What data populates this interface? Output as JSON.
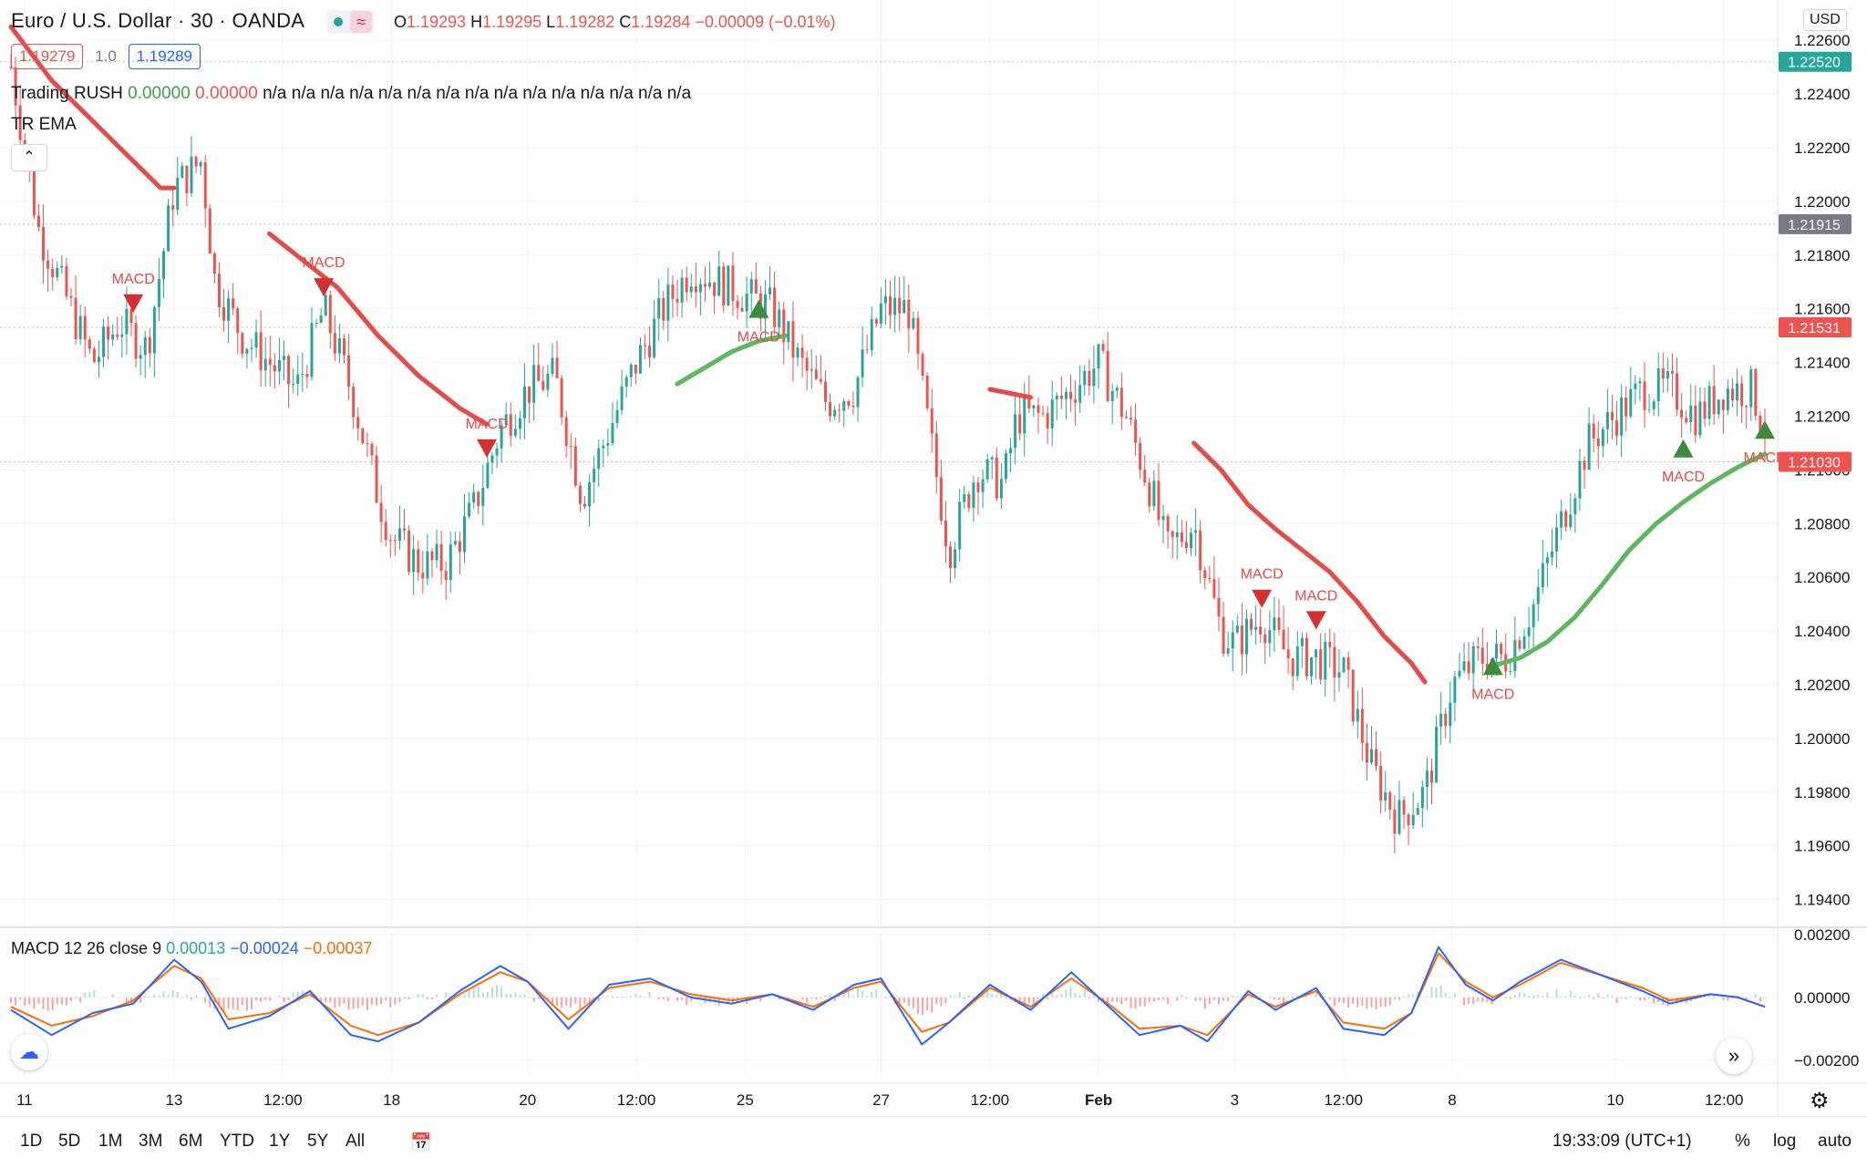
{
  "header": {
    "symbol": "Euro / U.S. Dollar · 30 · OANDA",
    "ohlc": {
      "o_label": "O",
      "o": "1.19293",
      "h_label": "H",
      "h": "1.19295",
      "l_label": "L",
      "l": "1.19282",
      "c_label": "C",
      "c": "1.19284",
      "change": "−0.00009 (−0.01%)"
    },
    "bid": "1.19279",
    "spread": "1.0",
    "ask": "1.19289"
  },
  "indicators": {
    "trading_rush": {
      "label": "Trading RUSH",
      "v1": "0.00000",
      "v2": "0.00000",
      "na": "n/a n/a n/a n/a n/a n/a n/a n/a n/a n/a n/a n/a n/a n/a n/a"
    },
    "tr_ema": {
      "label": "TR EMA"
    },
    "macd": {
      "label": "MACD 12 26 close 9",
      "hist": "0.00013",
      "macd": "−0.00024",
      "signal": "−0.00037"
    }
  },
  "currency": "USD",
  "icons": {
    "collapse": "chevron-up-icon",
    "logo": "tradingview-logo-icon",
    "scroll": "double-chevron-right-icon",
    "settings": "gear-icon",
    "date_range": "calendar-range-icon"
  },
  "colors": {
    "up": "#26a69a",
    "down": "#ef5350",
    "ema_up": "#5cb85c",
    "ema_down": "#e84a47",
    "macd": "#2962ff",
    "signal": "#ff6d00"
  },
  "timeframes": [
    "1D",
    "5D",
    "1M",
    "3M",
    "6M",
    "YTD",
    "1Y",
    "5Y",
    "All"
  ],
  "footer": {
    "clock": "19:33:09 (UTC+1)",
    "percent": "%",
    "log": "log",
    "auto": "auto"
  },
  "chart_data": {
    "type": "candlestick",
    "ylim": [
      1.193,
      1.2275
    ],
    "yticks": [
      "1.22600",
      "1.22400",
      "1.22200",
      "1.22000",
      "1.21800",
      "1.21600",
      "1.21400",
      "1.21200",
      "1.21000",
      "1.20800",
      "1.20600",
      "1.20400",
      "1.20200",
      "1.20000",
      "1.19800",
      "1.19600",
      "1.19400"
    ],
    "ytick_values": [
      1.226,
      1.224,
      1.222,
      1.22,
      1.218,
      1.216,
      1.214,
      1.212,
      1.21,
      1.208,
      1.206,
      1.204,
      1.202,
      1.2,
      1.198,
      1.196,
      1.194
    ],
    "xticks": [
      "11",
      "13",
      "12:00",
      "18",
      "20",
      "12:00",
      "25",
      "27",
      "12:00",
      "Feb",
      "3",
      "12:00",
      "8",
      "10",
      "12:00"
    ],
    "xtick_index": [
      1,
      12,
      20,
      28,
      38,
      46,
      54,
      64,
      72,
      80,
      90,
      98,
      106,
      118,
      126
    ],
    "price_labels": [
      {
        "value": 1.2252,
        "text": "1.22520",
        "color": "#26a69a"
      },
      {
        "value": 1.21915,
        "text": "1.21915",
        "color": "#787b86"
      },
      {
        "value": 1.21531,
        "text": "1.21531",
        "color": "#ef5350"
      },
      {
        "value": 1.2103,
        "text": "1.21030",
        "color": "#ef5350"
      }
    ],
    "price_path": [
      [
        0,
        1.225
      ],
      [
        2,
        1.219
      ],
      [
        4,
        1.2165
      ],
      [
        6,
        1.214
      ],
      [
        8,
        1.2155
      ],
      [
        10,
        1.2145
      ],
      [
        12,
        1.2205
      ],
      [
        14,
        1.2215
      ],
      [
        15,
        1.217
      ],
      [
        17,
        1.215
      ],
      [
        19,
        1.214
      ],
      [
        21,
        1.213
      ],
      [
        23,
        1.216
      ],
      [
        25,
        1.213
      ],
      [
        27,
        1.209
      ],
      [
        28,
        1.2075
      ],
      [
        30,
        1.2065
      ],
      [
        32,
        1.2065
      ],
      [
        34,
        1.2085
      ],
      [
        36,
        1.2115
      ],
      [
        38,
        1.213
      ],
      [
        40,
        1.2135
      ],
      [
        42,
        1.209
      ],
      [
        44,
        1.2115
      ],
      [
        46,
        1.214
      ],
      [
        48,
        1.216
      ],
      [
        50,
        1.2175
      ],
      [
        52,
        1.217
      ],
      [
        54,
        1.2165
      ],
      [
        56,
        1.216
      ],
      [
        58,
        1.214
      ],
      [
        60,
        1.2125
      ],
      [
        62,
        1.213
      ],
      [
        64,
        1.216
      ],
      [
        66,
        1.216
      ],
      [
        67,
        1.213
      ],
      [
        68,
        1.21
      ],
      [
        69,
        1.207
      ],
      [
        71,
        1.21
      ],
      [
        73,
        1.2095
      ],
      [
        74,
        1.212
      ],
      [
        76,
        1.212
      ],
      [
        78,
        1.213
      ],
      [
        80,
        1.214
      ],
      [
        82,
        1.212
      ],
      [
        84,
        1.209
      ],
      [
        85,
        1.207
      ],
      [
        87,
        1.208
      ],
      [
        89,
        1.204
      ],
      [
        90,
        1.2035
      ],
      [
        92,
        1.2045
      ],
      [
        94,
        1.203
      ],
      [
        96,
        1.203
      ],
      [
        98,
        1.2025
      ],
      [
        100,
        1.199
      ],
      [
        102,
        1.197
      ],
      [
        104,
        1.198
      ],
      [
        106,
        1.202
      ],
      [
        108,
        1.203
      ],
      [
        110,
        1.203
      ],
      [
        112,
        1.205
      ],
      [
        114,
        1.208
      ],
      [
        116,
        1.211
      ],
      [
        118,
        1.212
      ],
      [
        120,
        1.213
      ],
      [
        122,
        1.213
      ],
      [
        124,
        1.212
      ],
      [
        126,
        1.213
      ],
      [
        128,
        1.213
      ],
      [
        129,
        1.2115
      ]
    ],
    "ema_segments": [
      {
        "color": "down",
        "points": [
          [
            0,
            1.2265
          ],
          [
            3,
            1.2245
          ],
          [
            6,
            1.223
          ],
          [
            9,
            1.2215
          ],
          [
            11,
            1.2205
          ],
          [
            12,
            1.2205
          ]
        ]
      },
      {
        "color": "down",
        "points": [
          [
            19,
            1.2188
          ],
          [
            21,
            1.218
          ],
          [
            24,
            1.2168
          ],
          [
            27,
            1.215
          ],
          [
            30,
            1.2135
          ],
          [
            33,
            1.2123
          ],
          [
            35,
            1.2117
          ]
        ]
      },
      {
        "color": "up",
        "points": [
          [
            49,
            1.2132
          ],
          [
            51,
            1.2138
          ],
          [
            53,
            1.2144
          ],
          [
            55,
            1.2148
          ],
          [
            57,
            1.215
          ]
        ]
      },
      {
        "color": "down",
        "points": [
          [
            72,
            1.213
          ],
          [
            75,
            1.2127
          ]
        ]
      },
      {
        "color": "down",
        "points": [
          [
            87,
            1.211
          ],
          [
            89,
            1.21
          ],
          [
            91,
            1.2087
          ],
          [
            93,
            1.2078
          ],
          [
            95,
            1.207
          ],
          [
            97,
            1.2062
          ],
          [
            99,
            1.2051
          ],
          [
            101,
            1.2038
          ],
          [
            103,
            1.2028
          ],
          [
            104,
            1.2021
          ]
        ]
      },
      {
        "color": "up",
        "points": [
          [
            109,
            1.2027
          ],
          [
            111,
            1.203
          ],
          [
            113,
            1.2036
          ],
          [
            115,
            1.2045
          ],
          [
            117,
            1.2057
          ],
          [
            119,
            1.207
          ],
          [
            121,
            1.208
          ],
          [
            123,
            1.2088
          ],
          [
            125,
            1.2095
          ],
          [
            127,
            1.2101
          ],
          [
            129,
            1.2106
          ]
        ]
      }
    ],
    "signals": [
      {
        "i": 9,
        "price": 1.2162,
        "dir": "down",
        "label": "MACD"
      },
      {
        "i": 23,
        "price": 1.2168,
        "dir": "down",
        "label": "MACD"
      },
      {
        "i": 35,
        "price": 1.2108,
        "dir": "down",
        "label": "MACD"
      },
      {
        "i": 55,
        "price": 1.216,
        "dir": "up",
        "label": "MACD"
      },
      {
        "i": 92,
        "price": 1.2052,
        "dir": "down",
        "label": "MACD"
      },
      {
        "i": 96,
        "price": 1.2044,
        "dir": "down",
        "label": "MACD"
      },
      {
        "i": 109,
        "price": 1.2027,
        "dir": "up",
        "label": "MACD"
      },
      {
        "i": 123,
        "price": 1.2108,
        "dir": "up",
        "label": "MACD"
      },
      {
        "i": 129,
        "price": 1.2115,
        "dir": "up",
        "label": "MACD"
      }
    ],
    "macd_panel": {
      "ylim": [
        -0.0025,
        0.0022
      ],
      "yticks": [
        "0.00200",
        "0.00000",
        "−0.00200"
      ],
      "ytick_values": [
        0.002,
        0.0,
        -0.002
      ],
      "macd_path": [
        [
          0,
          -0.0004
        ],
        [
          3,
          -0.0012
        ],
        [
          6,
          -0.0005
        ],
        [
          9,
          -0.0002
        ],
        [
          12,
          0.0012
        ],
        [
          14,
          0.0005
        ],
        [
          16,
          -0.001
        ],
        [
          19,
          -0.0006
        ],
        [
          22,
          0.0002
        ],
        [
          25,
          -0.0012
        ],
        [
          27,
          -0.0014
        ],
        [
          30,
          -0.0008
        ],
        [
          33,
          0.0002
        ],
        [
          36,
          0.001
        ],
        [
          38,
          0.0005
        ],
        [
          41,
          -0.001
        ],
        [
          44,
          0.0004
        ],
        [
          47,
          0.0006
        ],
        [
          50,
          0.0
        ],
        [
          53,
          -0.0002
        ],
        [
          56,
          0.0001
        ],
        [
          59,
          -0.0004
        ],
        [
          62,
          0.0004
        ],
        [
          64,
          0.0006
        ],
        [
          67,
          -0.0015
        ],
        [
          69,
          -0.0008
        ],
        [
          72,
          0.0004
        ],
        [
          75,
          -0.0004
        ],
        [
          78,
          0.0008
        ],
        [
          81,
          -0.0004
        ],
        [
          83,
          -0.0012
        ],
        [
          86,
          -0.0009
        ],
        [
          88,
          -0.0014
        ],
        [
          91,
          0.0002
        ],
        [
          93,
          -0.0004
        ],
        [
          96,
          0.0003
        ],
        [
          98,
          -0.001
        ],
        [
          101,
          -0.0012
        ],
        [
          103,
          -0.0005
        ],
        [
          105,
          0.0016
        ],
        [
          107,
          0.0004
        ],
        [
          109,
          -0.0001
        ],
        [
          111,
          0.0005
        ],
        [
          114,
          0.0012
        ],
        [
          117,
          0.0007
        ],
        [
          120,
          0.0002
        ],
        [
          122,
          -0.0002
        ],
        [
          125,
          0.0001
        ],
        [
          127,
          0.0
        ],
        [
          129,
          -0.0003
        ]
      ],
      "signal_path": [
        [
          0,
          -0.0003
        ],
        [
          3,
          -0.0009
        ],
        [
          6,
          -0.0006
        ],
        [
          9,
          -0.0001
        ],
        [
          12,
          0.001
        ],
        [
          14,
          0.0006
        ],
        [
          16,
          -0.0007
        ],
        [
          19,
          -0.0005
        ],
        [
          22,
          0.0001
        ],
        [
          25,
          -0.0009
        ],
        [
          27,
          -0.0012
        ],
        [
          30,
          -0.0008
        ],
        [
          33,
          0.0001
        ],
        [
          36,
          0.0008
        ],
        [
          38,
          0.0005
        ],
        [
          41,
          -0.0007
        ],
        [
          44,
          0.0003
        ],
        [
          47,
          0.0005
        ],
        [
          50,
          0.0001
        ],
        [
          53,
          -0.0001
        ],
        [
          56,
          0.0001
        ],
        [
          59,
          -0.0003
        ],
        [
          62,
          0.0003
        ],
        [
          64,
          0.0005
        ],
        [
          67,
          -0.0011
        ],
        [
          69,
          -0.0008
        ],
        [
          72,
          0.0003
        ],
        [
          75,
          -0.0003
        ],
        [
          78,
          0.0006
        ],
        [
          81,
          -0.0003
        ],
        [
          83,
          -0.001
        ],
        [
          86,
          -0.0009
        ],
        [
          88,
          -0.0012
        ],
        [
          91,
          0.0001
        ],
        [
          93,
          -0.0003
        ],
        [
          96,
          0.0002
        ],
        [
          98,
          -0.0008
        ],
        [
          101,
          -0.001
        ],
        [
          103,
          -0.0005
        ],
        [
          105,
          0.0014
        ],
        [
          107,
          0.0005
        ],
        [
          109,
          0.0
        ],
        [
          111,
          0.0004
        ],
        [
          114,
          0.0011
        ],
        [
          117,
          0.0007
        ],
        [
          120,
          0.0003
        ],
        [
          122,
          -0.0001
        ],
        [
          125,
          0.0001
        ],
        [
          127,
          0.0
        ],
        [
          129,
          -0.0003
        ]
      ]
    }
  }
}
